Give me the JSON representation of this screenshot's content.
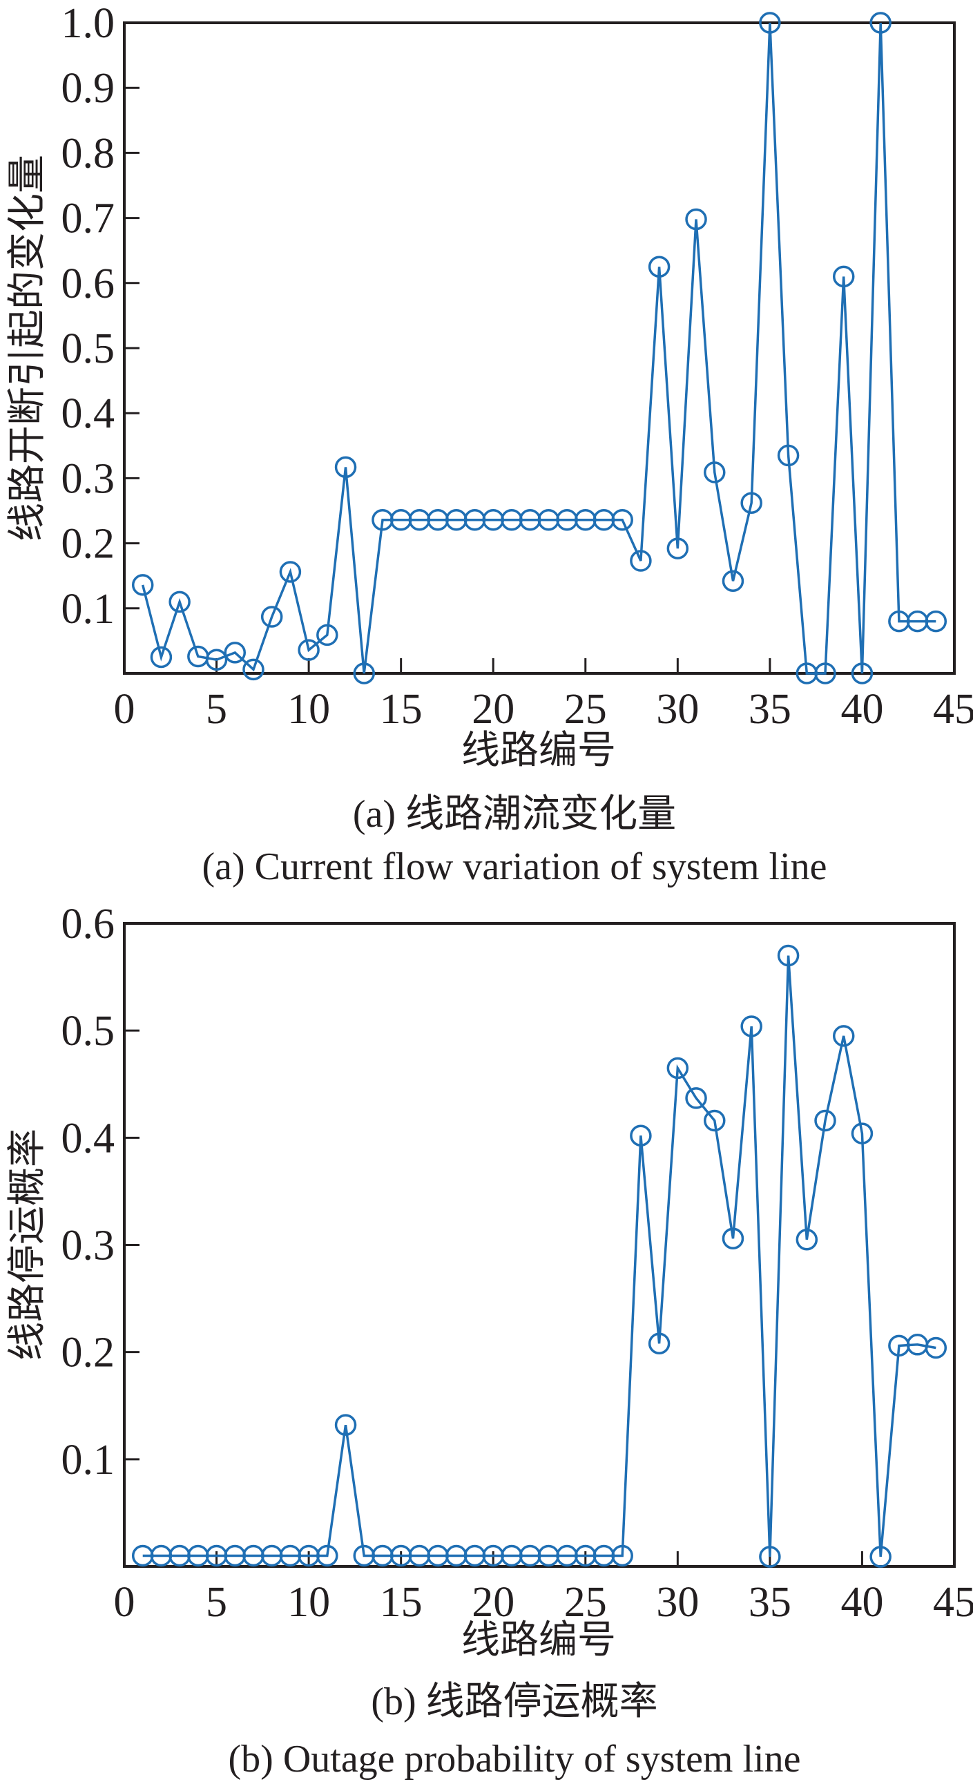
{
  "chart_data": [
    {
      "type": "line",
      "marker": "circle",
      "color": "#1f6fb4",
      "xlabel": "线路编号",
      "ylabel": "线路开断引起的变化量",
      "caption_cn": "(a) 线路潮流变化量",
      "caption_en": "(a)  Current flow variation of system line",
      "xlim": [
        0,
        45
      ],
      "ylim": [
        0,
        1.0
      ],
      "xticks": [
        0,
        5,
        10,
        15,
        20,
        25,
        30,
        35,
        40,
        45
      ],
      "yticks": [
        0.1,
        0.2,
        0.3,
        0.4,
        0.5,
        0.6,
        0.7,
        0.8,
        0.9,
        1.0
      ],
      "ytick_labels": [
        "0.1",
        "0.2",
        "0.3",
        "0.4",
        "0.5",
        "0.6",
        "0.7",
        "0.8",
        "0.9",
        "1.0"
      ],
      "x": [
        1,
        2,
        3,
        4,
        5,
        6,
        7,
        8,
        9,
        10,
        11,
        12,
        13,
        14,
        15,
        16,
        17,
        18,
        19,
        20,
        21,
        22,
        23,
        24,
        25,
        26,
        27,
        28,
        29,
        30,
        31,
        32,
        33,
        34,
        35,
        36,
        37,
        38,
        39,
        40,
        41,
        42,
        43,
        44
      ],
      "y": [
        0.136,
        0.025,
        0.11,
        0.026,
        0.021,
        0.032,
        0.006,
        0.087,
        0.156,
        0.036,
        0.059,
        0.317,
        0.0,
        0.236,
        0.236,
        0.236,
        0.236,
        0.236,
        0.236,
        0.236,
        0.236,
        0.236,
        0.236,
        0.236,
        0.236,
        0.236,
        0.236,
        0.173,
        0.625,
        0.192,
        0.698,
        0.309,
        0.142,
        0.262,
        1.0,
        0.335,
        0.0,
        0.0,
        0.61,
        0.0,
        1.0,
        0.08,
        0.08,
        0.08
      ]
    },
    {
      "type": "line",
      "marker": "circle",
      "color": "#1f6fb4",
      "xlabel": "线路编号",
      "ylabel": "线路停运概率",
      "caption_cn": "(b) 线路停运概率",
      "caption_en": "(b) Outage probability of system line",
      "xlim": [
        0,
        45
      ],
      "ylim": [
        0,
        0.6
      ],
      "xticks": [
        0,
        5,
        10,
        15,
        20,
        25,
        30,
        35,
        40,
        45
      ],
      "yticks": [
        0.1,
        0.2,
        0.3,
        0.4,
        0.5,
        0.6
      ],
      "ytick_labels": [
        "0.1",
        "0.2",
        "0.3",
        "0.4",
        "0.5",
        "0.6"
      ],
      "x": [
        1,
        2,
        3,
        4,
        5,
        6,
        7,
        8,
        9,
        10,
        11,
        12,
        13,
        14,
        15,
        16,
        17,
        18,
        19,
        20,
        21,
        22,
        23,
        24,
        25,
        26,
        27,
        28,
        29,
        30,
        31,
        32,
        33,
        34,
        35,
        36,
        37,
        38,
        39,
        40,
        41,
        42,
        43,
        44
      ],
      "y": [
        0.01,
        0.01,
        0.01,
        0.01,
        0.01,
        0.01,
        0.01,
        0.01,
        0.01,
        0.01,
        0.01,
        0.132,
        0.01,
        0.01,
        0.01,
        0.01,
        0.01,
        0.01,
        0.01,
        0.01,
        0.01,
        0.01,
        0.01,
        0.01,
        0.01,
        0.01,
        0.01,
        0.402,
        0.208,
        0.465,
        0.437,
        0.416,
        0.306,
        0.504,
        0.009,
        0.57,
        0.305,
        0.416,
        0.495,
        0.404,
        0.009,
        0.206,
        0.207,
        0.204
      ]
    }
  ]
}
